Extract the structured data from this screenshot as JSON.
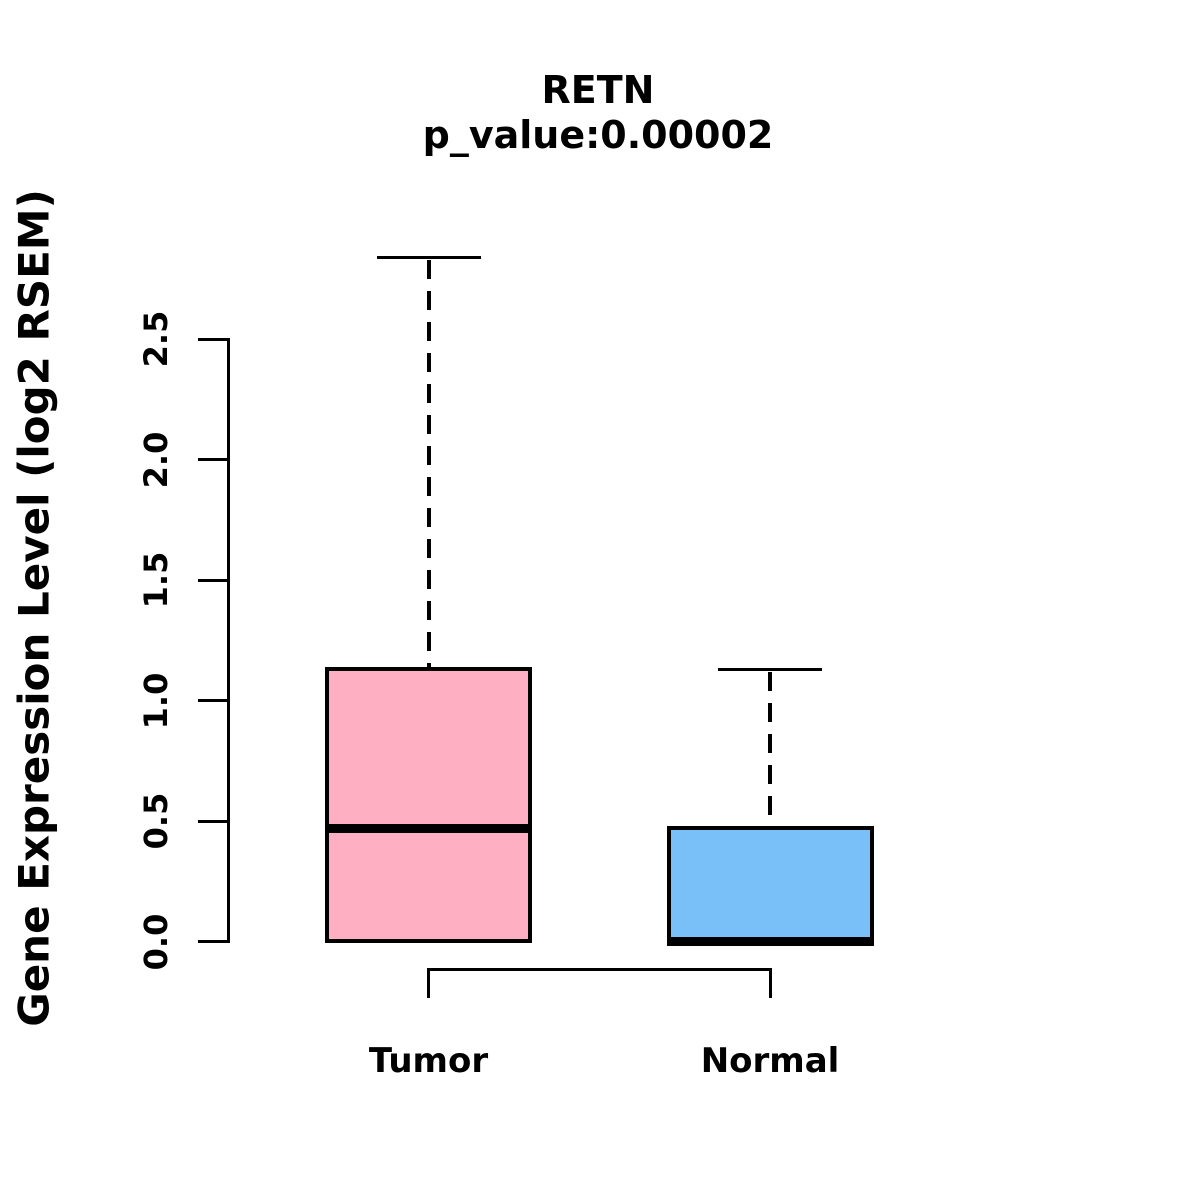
{
  "chart_data": {
    "type": "boxplot",
    "title": "RETN",
    "subtitle": "p_value:0.00002",
    "ylabel": "Gene Expression Level (log2 RSEM)",
    "xlabel": "",
    "ylim": [
      0,
      2.9
    ],
    "yticks": [
      "0.0",
      "0.5",
      "1.0",
      "1.5",
      "2.0",
      "2.5"
    ],
    "grid": false,
    "legend": "none",
    "categories": [
      "Tumor",
      "Normal"
    ],
    "groups": [
      {
        "name": "Tumor",
        "color": "#ffafc1",
        "stats": {
          "whisker_low": 0.0,
          "q1": 0.0,
          "median": 0.47,
          "q3": 1.14,
          "whisker_high": 2.84
        }
      },
      {
        "name": "Normal",
        "color": "#78c0f7",
        "stats": {
          "whisker_low": 0.0,
          "q1": 0.0,
          "median": 0.0,
          "q3": 0.48,
          "whisker_high": 1.13
        }
      }
    ],
    "colors": {
      "stroke": "#000000",
      "text": "#000000",
      "background": "#ffffff"
    }
  }
}
